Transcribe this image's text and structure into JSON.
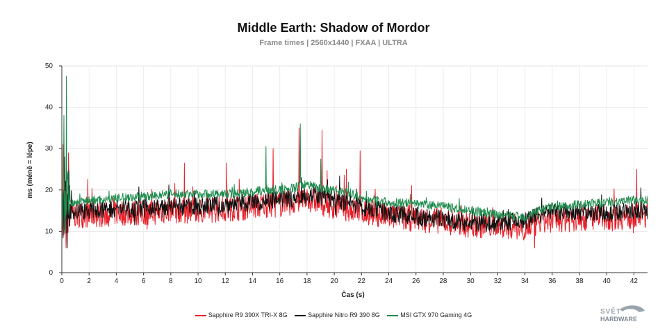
{
  "chart_data": {
    "type": "line",
    "title": "Middle Earth: Shadow of Mordor",
    "subtitle": "Frame times | 2560x1440 | FXAA | ULTRA",
    "xlabel": "Čas (s)",
    "ylabel": "ms (méně = lépe)",
    "xlim": [
      0,
      43
    ],
    "ylim": [
      0,
      50
    ],
    "xticks": [
      0,
      2,
      4,
      6,
      8,
      10,
      12,
      14,
      16,
      18,
      20,
      22,
      24,
      26,
      28,
      30,
      32,
      34,
      36,
      38,
      40,
      42
    ],
    "yticks": [
      0,
      10,
      20,
      30,
      40,
      50
    ],
    "grid": true,
    "legend_position": "bottom",
    "series": [
      {
        "name": "Sapphire R9 390X TRI-X 8G",
        "color": "#e8202a",
        "x": [
          0,
          1,
          2,
          4,
          6,
          8,
          10,
          12,
          14,
          15,
          16,
          17,
          18,
          19,
          20,
          21,
          22,
          24,
          26,
          28,
          30,
          32,
          34,
          35,
          36,
          38,
          40,
          42,
          43
        ],
        "values": [
          15,
          14,
          14,
          14.5,
          14.5,
          15,
          15,
          15.5,
          16,
          16.5,
          16.5,
          17,
          18,
          17,
          16,
          15.5,
          15,
          13.5,
          13,
          12.5,
          11.5,
          11.5,
          11,
          12,
          13,
          13,
          13.5,
          13.5,
          14
        ],
        "spikes": [
          [
            0.1,
            31
          ],
          [
            0.3,
            6
          ],
          [
            0.5,
            29
          ],
          [
            17.4,
            35
          ],
          [
            19.1,
            34.5
          ],
          [
            15.5,
            30
          ],
          [
            21.9,
            29.5
          ],
          [
            20.9,
            25
          ],
          [
            9.0,
            26.5
          ],
          [
            12.1,
            26.5
          ],
          [
            34.7,
            6
          ],
          [
            42.2,
            25
          ]
        ]
      },
      {
        "name": "Sapphire Nitro R9 390 8G",
        "color": "#111111",
        "x": [
          0,
          1,
          2,
          4,
          6,
          8,
          10,
          12,
          14,
          15,
          16,
          17,
          18,
          19,
          20,
          21,
          22,
          24,
          26,
          28,
          30,
          32,
          34,
          35,
          36,
          38,
          40,
          42,
          43
        ],
        "values": [
          15.5,
          15,
          15,
          15.5,
          15.5,
          16,
          16,
          16.5,
          17,
          17.5,
          17.5,
          18,
          19,
          18.5,
          17.5,
          17,
          16,
          14.5,
          13.5,
          13,
          12,
          12,
          12.5,
          14,
          14.5,
          14.5,
          14.5,
          15,
          15
        ],
        "spikes": [
          [
            0.2,
            28
          ],
          [
            0.4,
            6
          ],
          [
            17.6,
            23
          ],
          [
            19.5,
            22.5
          ],
          [
            42.5,
            20.5
          ]
        ]
      },
      {
        "name": "MSI GTX 970 Gaming 4G",
        "color": "#1f8c4e",
        "x": [
          0,
          1,
          2,
          4,
          6,
          8,
          10,
          12,
          14,
          15,
          16,
          17,
          18,
          19,
          20,
          21,
          22,
          24,
          26,
          28,
          30,
          32,
          34,
          35,
          36,
          38,
          40,
          42,
          43
        ],
        "values": [
          17,
          17,
          17.5,
          18,
          18.5,
          19,
          19,
          19,
          19.5,
          20,
          20,
          20.5,
          21.5,
          20.5,
          20,
          19.5,
          18,
          17,
          16.5,
          16,
          15,
          14,
          13.5,
          15,
          16,
          16.5,
          17,
          17.5,
          17.5
        ],
        "spikes": [
          [
            0.35,
            47.5
          ],
          [
            0.15,
            38
          ],
          [
            15.0,
            30.5
          ],
          [
            17.5,
            36
          ],
          [
            19.0,
            27.5
          ]
        ]
      }
    ]
  },
  "logo": {
    "line1": "SVĚT",
    "line2": "HARDWARE"
  }
}
